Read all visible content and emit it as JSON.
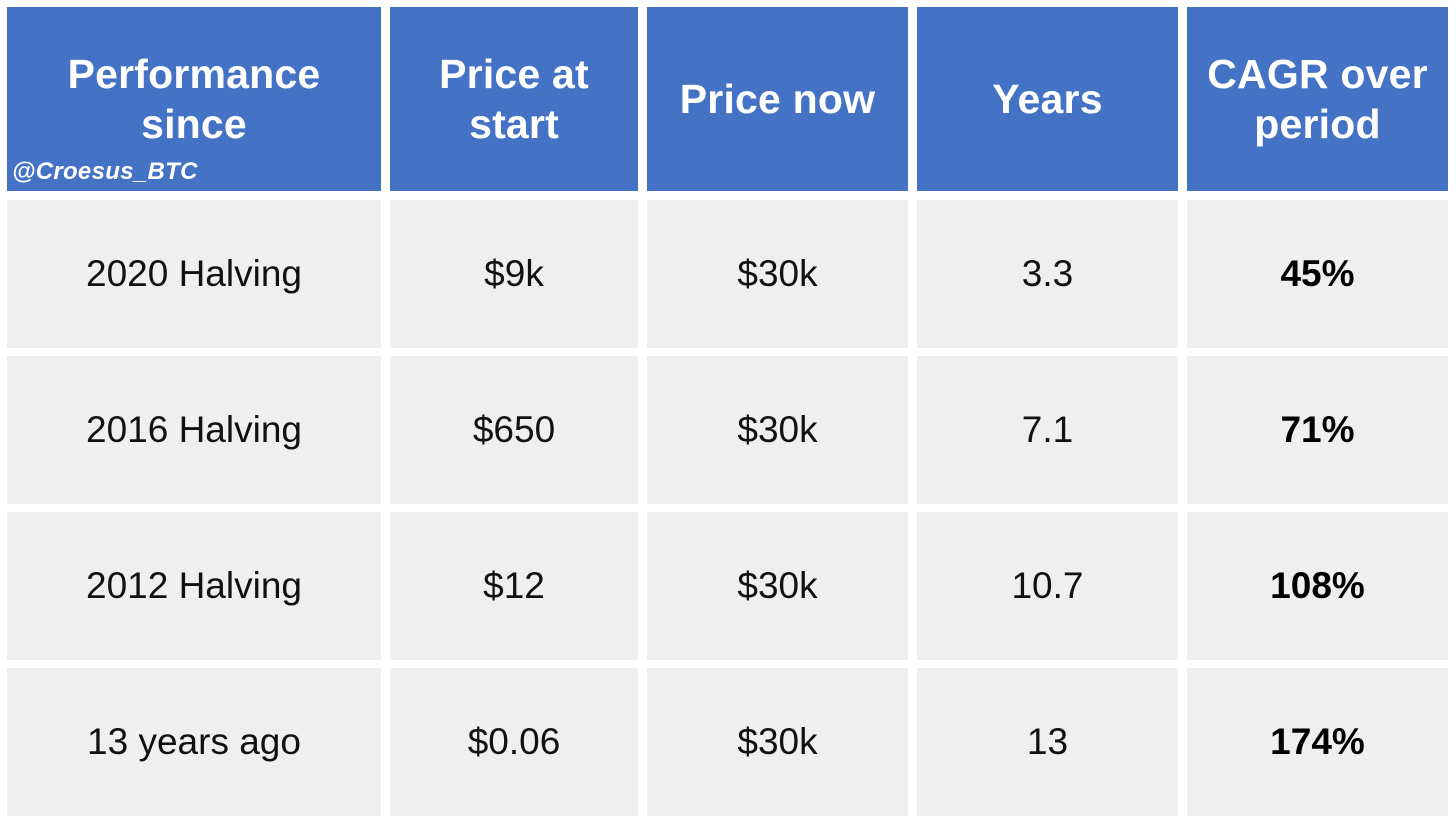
{
  "chart_data": {
    "type": "table",
    "columns": [
      "Performance since",
      "Price at start",
      "Price now",
      "Years",
      "CAGR over period"
    ],
    "rows": [
      [
        "2020 Halving",
        "$9k",
        "$30k",
        "3.3",
        "45%"
      ],
      [
        "2016 Halving",
        "$650",
        "$30k",
        "7.1",
        "71%"
      ],
      [
        "2012 Halving",
        "$12",
        "$30k",
        "10.7",
        "108%"
      ],
      [
        "13 years ago",
        "$0.06",
        "$30k",
        "13",
        "174%"
      ]
    ],
    "header_color": "#4472c4",
    "cell_color": "#efefef"
  },
  "watermark": "@Croesus_BTC"
}
